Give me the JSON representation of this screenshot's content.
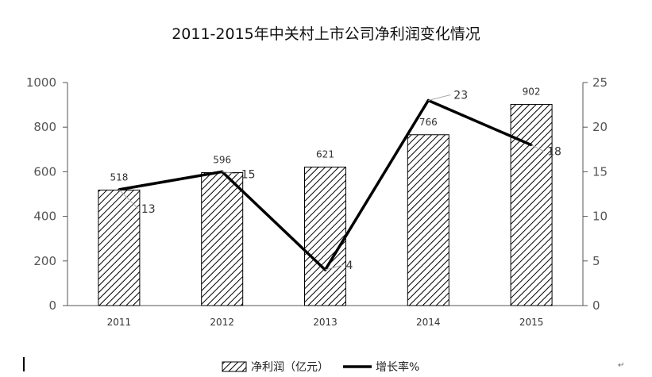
{
  "chart_data": {
    "type": "bar+line",
    "title": "2011-2015年中关村上市公司净利润变化情况",
    "categories": [
      "2011",
      "2012",
      "2013",
      "2014",
      "2015"
    ],
    "series": [
      {
        "name": "净利润（亿元）",
        "type": "bar",
        "axis": "left",
        "values": [
          518,
          596,
          621,
          766,
          902
        ]
      },
      {
        "name": "增长率%",
        "type": "line",
        "axis": "right",
        "values": [
          13,
          15,
          4,
          23,
          18
        ]
      }
    ],
    "y_left": {
      "range": [
        0,
        1000
      ],
      "ticks": [
        "0",
        "200",
        "400",
        "600",
        "800",
        "1000"
      ]
    },
    "y_right": {
      "range": [
        0,
        25
      ],
      "ticks": [
        "0",
        "5",
        "10",
        "15",
        "20",
        "25"
      ]
    },
    "grid": false,
    "legend_position": "bottom",
    "colors": {
      "bar_fill": "#ffffff",
      "bar_hatch": "#000000",
      "line": "#000000",
      "axis": "#555555"
    }
  },
  "page": {
    "return_mark": "↵"
  }
}
